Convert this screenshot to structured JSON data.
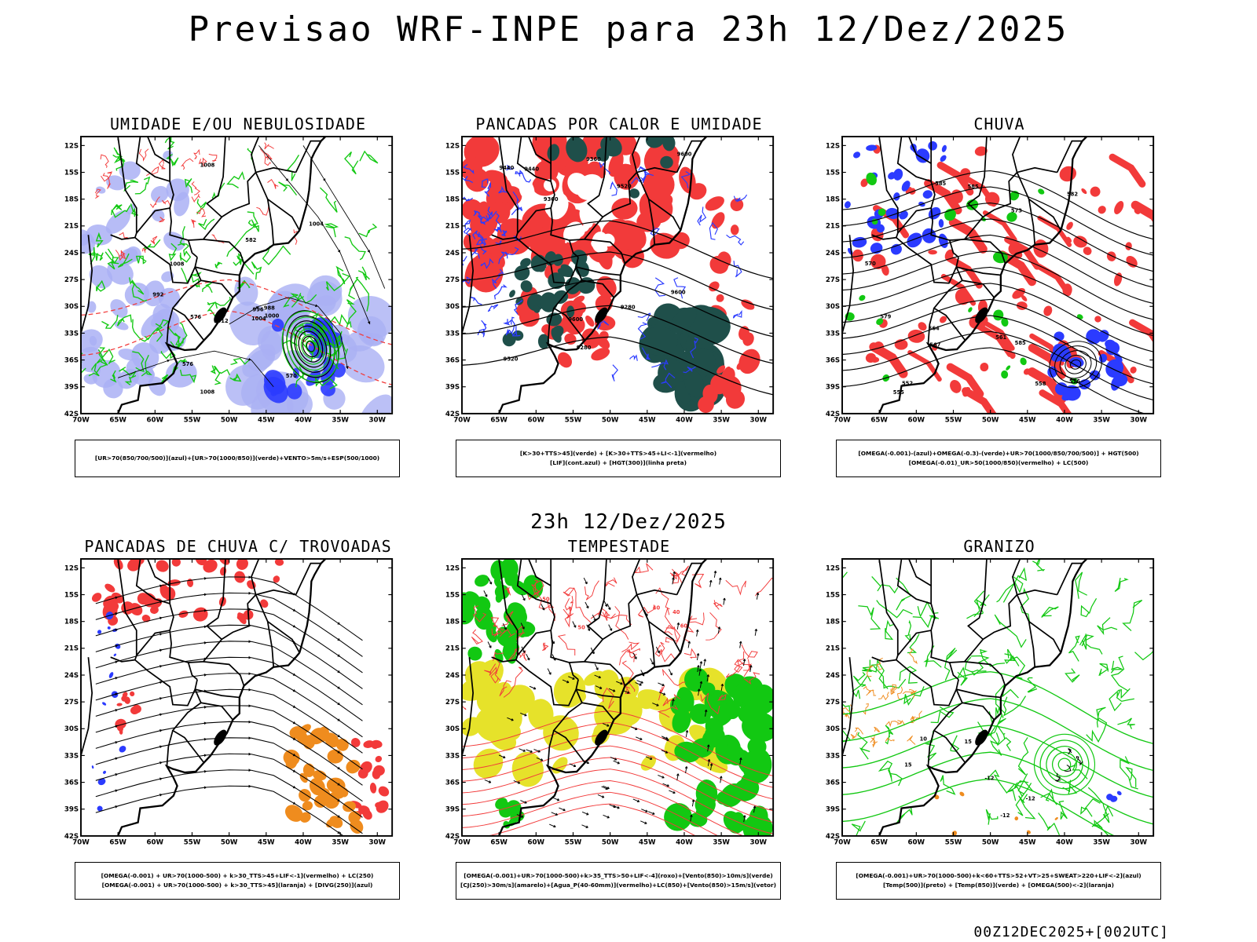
{
  "page": {
    "title": "Previsao WRF-INPE  para 23h 12/Dez/2025",
    "mid_label": "23h 12/Dez/2025",
    "footer": "00Z12DEC2025+[002UTC]"
  },
  "axes": {
    "lat_ticks": [
      "12S",
      "15S",
      "18S",
      "21S",
      "24S",
      "27S",
      "30S",
      "33S",
      "36S",
      "39S",
      "42S"
    ],
    "lon_ticks": [
      "70W",
      "65W",
      "60W",
      "55W",
      "50W",
      "45W",
      "40W",
      "35W",
      "30W"
    ]
  },
  "colors": {
    "blue": "#2b3bff",
    "lightblue": "#aab0f4",
    "green": "#12c812",
    "red": "#f23a3a",
    "orange": "#ef8c1e",
    "yellow": "#e6e22a",
    "darkteal": "#1f4f4a"
  },
  "panels": [
    {
      "title": "UMIDADE E/OU NEBULOSIDADE",
      "caption": [
        "[UR>70(850/700/500)](azul)+[UR>70(1000/850)](verde)+VENTO>5m/s+ESP(500/1000)"
      ],
      "contour_labels": [
        "1008",
        "1012",
        "1008",
        "1004",
        "1000",
        "996",
        "992",
        "988",
        "1004",
        "1008",
        "570",
        "576",
        "582",
        "576"
      ]
    },
    {
      "title": "PANCADAS POR CALOR E UMIDADE",
      "caption": [
        "[K>30+TTS>45](verde) + [K>30+TTS>45+LI<-1](vermelho)",
        "[LIF](cont.azul) + [HGT(300)](linha preta)"
      ],
      "contour_labels": [
        "9600",
        "9520",
        "9440",
        "9360",
        "9280",
        "9600",
        "9520",
        "9440",
        "9360",
        "9280",
        "9600"
      ]
    },
    {
      "title": "CHUVA",
      "caption": [
        "[OMEGA(-0.001)-(azul)+OMEGA(-0.3)-(verde)+UR>70(1000/850/700/500)] + HGT(500)",
        "[OMEGA(-0.01)_UR>50(1000/850)(vermelho) + LC(500)"
      ],
      "contour_labels": [
        "585",
        "585",
        "582",
        "579",
        "576",
        "573",
        "570",
        "567",
        "564",
        "561",
        "558",
        "555",
        "552",
        "585"
      ]
    },
    {
      "title": "PANCADAS DE CHUVA C/ TROVOADAS",
      "caption": [
        "[OMEGA(-0.001) + UR>70(1000-500) + k>30_TTS>45+LIF<-1](vermelho) + LC(250)",
        "[OMEGA(-0.001) + UR>70(1000-500) + k>30_TTS>45](laranja) + [DIVG(250)](azul)"
      ],
      "contour_labels": []
    },
    {
      "title": "TEMPESTADE",
      "caption": [
        "[OMEGA(-0.001)+UR>70(1000-500)+k>35_TTS>50+LIF<-4](roxo)+[Vento(850)>10m/s](verde)",
        "[CJ(250)>30m/s](amarelo)+[Agua_P(40-60mm)](vermelho)+LC(850)+[Vento(850)>15m/s](vetor)"
      ],
      "contour_labels": [
        "50",
        "40",
        "60",
        "50",
        "40"
      ]
    },
    {
      "title": "GRANIZO",
      "caption": [
        "[OMEGA(-0.001)+UR>70(1000-500)+k<60+TTS>52+VT>25+SWEAT>220+LIF<-2](azul)",
        "[Temp(500)](preto) + [Temp(850)](verde) + [OMEGA(500)<-2](laranja)"
      ],
      "contour_labels": [
        "-12",
        "-12",
        "-12",
        "15",
        "10",
        "15"
      ]
    }
  ]
}
